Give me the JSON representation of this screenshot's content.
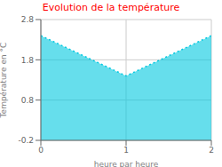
{
  "chart_data": {
    "type": "area",
    "title": "Evolution de la température",
    "x_label": "heure par heure",
    "y_label": "Température en °C",
    "x": [
      0,
      1,
      2
    ],
    "values": [
      2.4,
      1.4,
      2.4
    ],
    "xlim": [
      0,
      2
    ],
    "ylim": [
      -0.2,
      2.8
    ],
    "xticks": [
      0,
      1,
      2
    ],
    "yticks": [
      -0.2,
      0.8,
      1.8,
      2.8
    ],
    "color": "#00c8e0",
    "line_style": "dotted",
    "grid": true
  }
}
